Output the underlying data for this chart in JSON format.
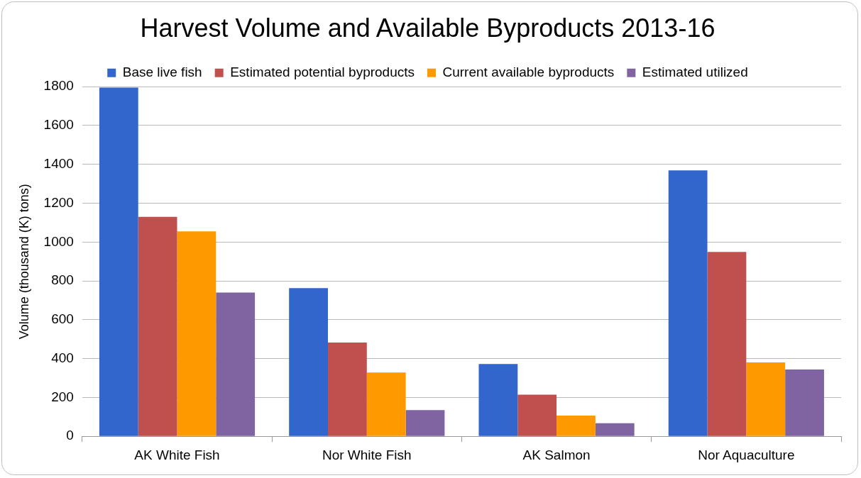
{
  "chart_data": {
    "type": "bar",
    "title": "Harvest Volume and Available Byproducts 2013-16",
    "ylabel": "Volume (thousand (K) tons)",
    "categories": [
      "AK White Fish",
      "Nor White Fish",
      "AK Salmon",
      "Nor Aquaculture"
    ],
    "series": [
      {
        "name": "Base live fish",
        "color": "#3366cc",
        "values": [
          1795,
          763,
          372,
          1369
        ]
      },
      {
        "name": "Estimated potential byproducts",
        "color": "#c0504d",
        "values": [
          1130,
          483,
          214,
          949
        ]
      },
      {
        "name": "Current available byproducts",
        "color": "#ff9900",
        "values": [
          1055,
          328,
          107,
          380
        ]
      },
      {
        "name": "Estimated utilized",
        "color": "#8064a2",
        "values": [
          740,
          135,
          67,
          344
        ]
      }
    ],
    "ylim": [
      0,
      1800
    ],
    "yticks": [
      0,
      200,
      400,
      600,
      800,
      1000,
      1200,
      1400,
      1600,
      1800
    ],
    "grid": "y",
    "legend": "top"
  }
}
